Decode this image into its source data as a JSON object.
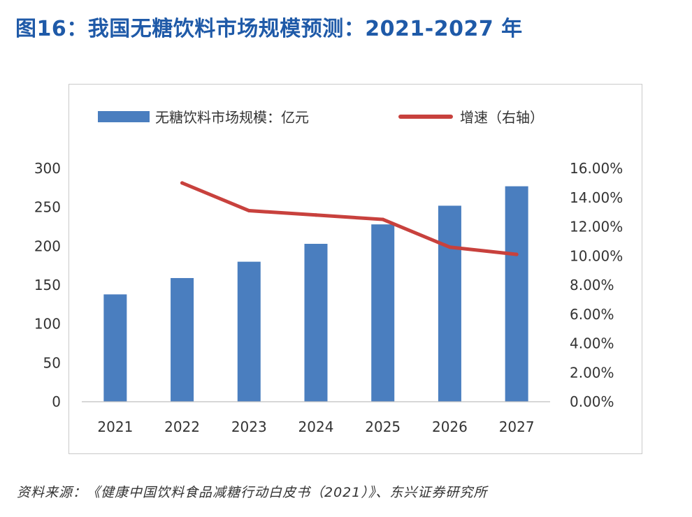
{
  "title": "图16：我国无糖饮料市场规模预测：2021-2027 年",
  "source": "资料来源：《健康中国饮料食品减糖行动白皮书（2021）》、东兴证券研究所",
  "legend": {
    "bar_label": "无糖饮料市场规模：亿元",
    "line_label": "增速（右轴）"
  },
  "colors": {
    "bar": "#4a7ebf",
    "line": "#c8413d",
    "title": "#1f5aa8"
  },
  "chart_data": {
    "type": "bar+line",
    "categories": [
      "2021",
      "2022",
      "2023",
      "2024",
      "2025",
      "2026",
      "2027"
    ],
    "series": [
      {
        "name": "无糖饮料市场规模：亿元",
        "type": "bar",
        "axis": "left",
        "values": [
          138,
          159,
          180,
          203,
          228,
          252,
          277
        ]
      },
      {
        "name": "增速（右轴）",
        "type": "line",
        "axis": "right",
        "values": [
          null,
          15.0,
          13.1,
          12.8,
          12.5,
          10.6,
          10.1
        ]
      }
    ],
    "y_left": {
      "min": 0,
      "max": 300,
      "ticks": [
        "0",
        "50",
        "100",
        "150",
        "200",
        "250",
        "300"
      ]
    },
    "y_right": {
      "min": 0,
      "max": 16,
      "ticks": [
        "0.00%",
        "2.00%",
        "4.00%",
        "6.00%",
        "8.00%",
        "10.00%",
        "12.00%",
        "14.00%",
        "16.00%"
      ]
    },
    "grid": false,
    "legend_position": "top"
  }
}
